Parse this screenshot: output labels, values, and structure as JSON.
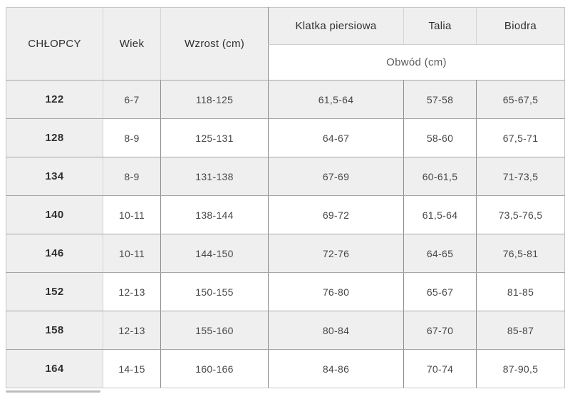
{
  "colors": {
    "cell_gray": "#efefef",
    "border_light": "#d4d4d4",
    "border_dark": "#8c8c8c",
    "row_separator": "#a6a6a6"
  },
  "chart_data": {
    "type": "table",
    "title": "CHŁOPCY",
    "columns": [
      "CHŁOPCY",
      "Wiek",
      "Wzrost (cm)",
      "Klatka piersiowa",
      "Talia",
      "Biodra"
    ],
    "subheader": "Obwód (cm)",
    "subheader_spans": [
      "Klatka piersiowa",
      "Talia",
      "Biodra"
    ],
    "rows": [
      [
        "122",
        "6-7",
        "118-125",
        "61,5-64",
        "57-58",
        "65-67,5"
      ],
      [
        "128",
        "8-9",
        "125-131",
        "64-67",
        "58-60",
        "67,5-71"
      ],
      [
        "134",
        "8-9",
        "131-138",
        "67-69",
        "60-61,5",
        "71-73,5"
      ],
      [
        "140",
        "10-11",
        "138-144",
        "69-72",
        "61,5-64",
        "73,5-76,5"
      ],
      [
        "146",
        "10-11",
        "144-150",
        "72-76",
        "64-65",
        "76,5-81"
      ],
      [
        "152",
        "12-13",
        "150-155",
        "76-80",
        "65-67",
        "81-85"
      ],
      [
        "158",
        "12-13",
        "155-160",
        "80-84",
        "67-70",
        "85-87"
      ],
      [
        "164",
        "14-15",
        "160-166",
        "84-86",
        "70-74",
        "87-90,5"
      ]
    ]
  }
}
